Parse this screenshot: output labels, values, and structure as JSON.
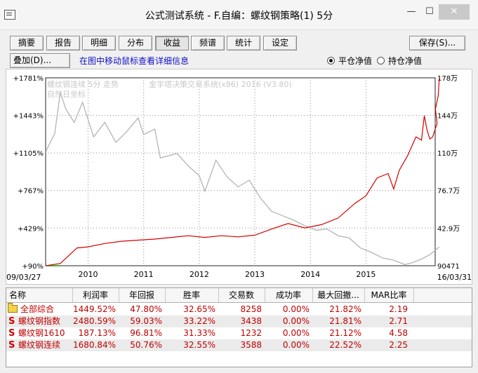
{
  "window": {
    "title": "公式测试系统 - F.自编：螺纹钢策略(1) 5分",
    "min": "—",
    "max": "☐",
    "close": "✕"
  },
  "toolbar": {
    "buttons": [
      "摘要",
      "报告",
      "明细",
      "分布",
      "收益",
      "频谱",
      "统计",
      "设定"
    ],
    "active": "收益",
    "save_label": "保存(S)...",
    "overlay_label": "叠加(D)...",
    "hint": "在图中移动鼠标查看详细信息",
    "radio_flat": "平仓净值",
    "radio_hold": "持仓净值",
    "radio_selected": "平仓净值"
  },
  "chart_data": {
    "type": "line",
    "left_axis": {
      "ticks": [
        "+1781%",
        "+1443%",
        "+1105%",
        "+767%",
        "+429%",
        "+90%"
      ],
      "values": [
        1781,
        1443,
        1105,
        767,
        429,
        90
      ]
    },
    "right_axis": {
      "ticks": [
        "178万",
        "144万",
        "110万",
        "76.7万",
        "42.9万",
        "90471"
      ]
    },
    "x_tick_labels": [
      "2010",
      "2011",
      "2012",
      "2013",
      "2014",
      "2015"
    ],
    "x_start_label": "09/03/27",
    "x_end_label": "16/03/31",
    "x_range": [
      "2009-03-27",
      "2016-03-31"
    ],
    "overlay_label_1": "螺纹钢连续 5分 走势",
    "overlay_label_2": "自然日坐标",
    "watermark": "金字塔决策交易系统(x86) 2016 (V3.80)",
    "grid": true,
    "colors": {
      "equity": "#d40000",
      "price": "#b4b4b4",
      "grid": "#8c8c8c"
    },
    "series": [
      {
        "values": [
          [
            2009.24,
            90
          ],
          [
            2009.5,
            110
          ],
          [
            2009.8,
            250
          ],
          [
            2010.0,
            260
          ],
          [
            2010.3,
            290
          ],
          [
            2010.6,
            310
          ],
          [
            2010.9,
            320
          ],
          [
            2011.2,
            330
          ],
          [
            2011.5,
            345
          ],
          [
            2011.8,
            360
          ],
          [
            2012.1,
            345
          ],
          [
            2012.4,
            360
          ],
          [
            2012.7,
            350
          ],
          [
            2013.0,
            365
          ],
          [
            2013.3,
            420
          ],
          [
            2013.6,
            470
          ],
          [
            2013.9,
            430
          ],
          [
            2014.2,
            460
          ],
          [
            2014.5,
            520
          ],
          [
            2014.8,
            650
          ],
          [
            2015.0,
            720
          ],
          [
            2015.2,
            880
          ],
          [
            2015.4,
            920
          ],
          [
            2015.5,
            780
          ],
          [
            2015.6,
            950
          ],
          [
            2015.75,
            1080
          ],
          [
            2015.9,
            1250
          ],
          [
            2016.0,
            1220
          ],
          [
            2016.05,
            1440
          ],
          [
            2016.1,
            1310
          ],
          [
            2016.15,
            1230
          ],
          [
            2016.2,
            1250
          ],
          [
            2016.28,
            1370
          ],
          [
            2016.25,
            1500
          ],
          [
            2016.3,
            1620
          ],
          [
            2016.32,
            1781
          ]
        ]
      },
      {
        "values": [
          [
            2009.24,
            1120
          ],
          [
            2009.4,
            1280
          ],
          [
            2009.5,
            1650
          ],
          [
            2009.6,
            1500
          ],
          [
            2009.75,
            1380
          ],
          [
            2009.9,
            1560
          ],
          [
            2010.1,
            1250
          ],
          [
            2010.3,
            1380
          ],
          [
            2010.5,
            1200
          ],
          [
            2010.7,
            1300
          ],
          [
            2010.9,
            1420
          ],
          [
            2011.0,
            1270
          ],
          [
            2011.2,
            1320
          ],
          [
            2011.3,
            1060
          ],
          [
            2011.6,
            1100
          ],
          [
            2011.8,
            990
          ],
          [
            2012.0,
            900
          ],
          [
            2012.1,
            760
          ],
          [
            2012.3,
            1040
          ],
          [
            2012.5,
            890
          ],
          [
            2012.7,
            800
          ],
          [
            2012.9,
            860
          ],
          [
            2013.1,
            700
          ],
          [
            2013.3,
            580
          ],
          [
            2013.5,
            540
          ],
          [
            2013.7,
            500
          ],
          [
            2013.9,
            450
          ],
          [
            2014.1,
            410
          ],
          [
            2014.3,
            420
          ],
          [
            2014.5,
            360
          ],
          [
            2014.7,
            340
          ],
          [
            2014.9,
            250
          ],
          [
            2015.1,
            210
          ],
          [
            2015.3,
            160
          ],
          [
            2015.5,
            140
          ],
          [
            2015.7,
            100
          ],
          [
            2015.85,
            120
          ],
          [
            2016.0,
            150
          ],
          [
            2016.15,
            190
          ],
          [
            2016.32,
            260
          ]
        ]
      }
    ]
  },
  "table": {
    "headers": [
      "名称",
      "利润率",
      "年回报",
      "胜率",
      "交易数",
      "成功率",
      "最大回撤...",
      "MAR比率"
    ],
    "rows": [
      {
        "icon": "folder-icon",
        "name": "全部综合",
        "profit": "1449.52%",
        "annual": "47.80%",
        "win": "32.65%",
        "trades": "8258",
        "success": "0.00%",
        "drawdown": "21.82%",
        "mar": "2.19"
      },
      {
        "icon": "s-icon",
        "name": "螺纹钢指数",
        "profit": "2480.59%",
        "annual": "59.03%",
        "win": "33.22%",
        "trades": "3438",
        "success": "0.00%",
        "drawdown": "21.81%",
        "mar": "2.71"
      },
      {
        "icon": "s-icon",
        "name": "螺纹钢1610",
        "profit": "187.13%",
        "annual": "96.81%",
        "win": "31.33%",
        "trades": "1232",
        "success": "0.00%",
        "drawdown": "21.12%",
        "mar": "4.58"
      },
      {
        "icon": "s-icon",
        "name": "螺纹钢连续",
        "profit": "1680.84%",
        "annual": "50.76%",
        "win": "32.55%",
        "trades": "3588",
        "success": "0.00%",
        "drawdown": "22.52%",
        "mar": "2.25"
      }
    ]
  }
}
